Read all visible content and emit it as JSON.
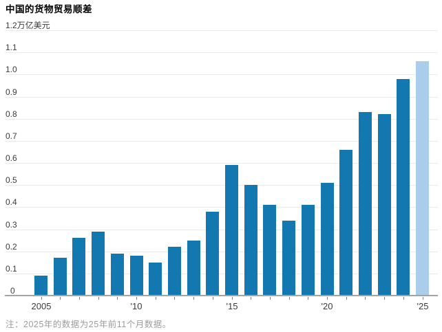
{
  "header": {
    "title": "中国的货物贸易顺差"
  },
  "note": "注：2025年的数据为25年前11个月数据。",
  "colors": {
    "bar": "#1478b0",
    "bar_highlight": "#a9cdea",
    "gridline": "#e9e9e9",
    "axis": "#a3a3a3",
    "tick": "#808080",
    "axis_text": "#3a3a3a",
    "note_text": "#9b9b9b",
    "title_text": "#000000"
  },
  "chart_data": {
    "type": "bar",
    "title": "中国的货物贸易顺差",
    "unit_label": "万亿美元",
    "ylabel": "万亿美元",
    "xlabel": "",
    "categories": [
      2005,
      2006,
      2007,
      2008,
      2009,
      2010,
      2011,
      2012,
      2013,
      2014,
      2015,
      2016,
      2017,
      2018,
      2019,
      2020,
      2021,
      2022,
      2023,
      2024,
      2025
    ],
    "values": [
      0.09,
      0.17,
      0.26,
      0.29,
      0.19,
      0.18,
      0.15,
      0.22,
      0.25,
      0.38,
      0.59,
      0.5,
      0.41,
      0.34,
      0.41,
      0.51,
      0.66,
      0.83,
      0.82,
      0.98,
      1.06
    ],
    "highlight_last_bar": true,
    "ylim": [
      0,
      1.2
    ],
    "ytick_step": 0.1,
    "ytick_labels": [
      "0",
      "0.1",
      "0.2",
      "0.3",
      "0.4",
      "0.5",
      "0.6",
      "0.7",
      "0.8",
      "0.9",
      "1.0",
      "1.1",
      "1.2万亿美元"
    ],
    "xtick_labels": [
      "2005",
      "'10",
      "'15",
      "'20",
      "'25"
    ],
    "xtick_indices": [
      0,
      5,
      10,
      15,
      20
    ],
    "grid": true,
    "legend": "none"
  }
}
